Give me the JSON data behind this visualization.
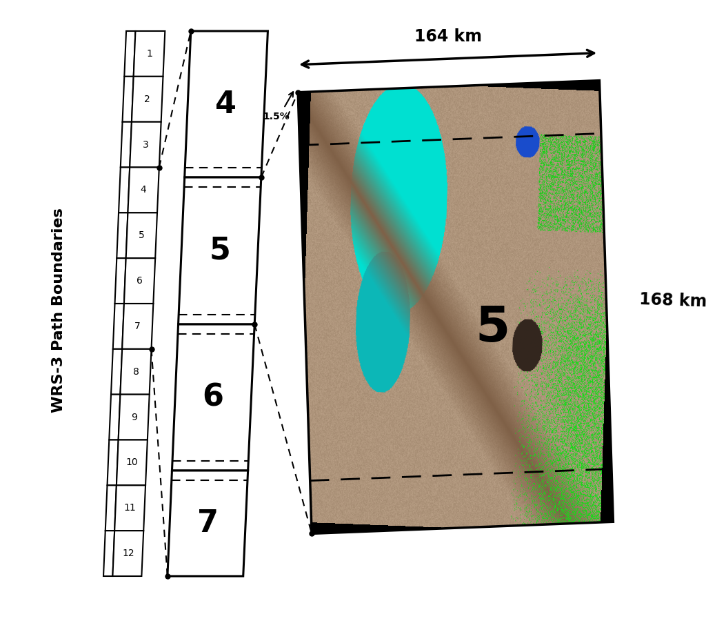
{
  "title": "WRS-3 Path Boundaries",
  "row_numbers": [
    1,
    2,
    3,
    4,
    5,
    6,
    7,
    8,
    9,
    10,
    11,
    12
  ],
  "scene_numbers": [
    4,
    5,
    6,
    7
  ],
  "highlighted_scene": 5,
  "dim_width_km": "164 km",
  "dim_height_km": "168 km",
  "overlap_pct": "1.5%",
  "bg_color": "#ffffff",
  "line_color": "#000000",
  "dashed_color": "#000000",
  "strip_label_fontsize": 16,
  "scene_num_fontsize": 32,
  "dim_fontsize": 17,
  "row_fontsize": 10,
  "scene5_label_fontsize": 52,
  "overlap_fontsize": 10
}
